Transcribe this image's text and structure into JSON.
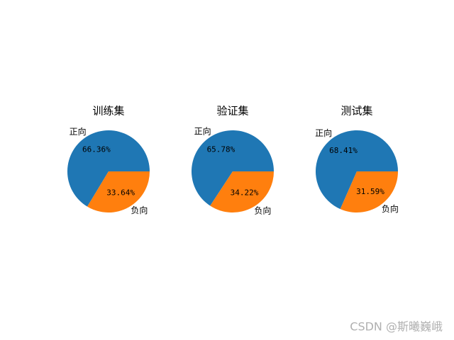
{
  "chart_data": [
    {
      "type": "pie",
      "title": "训练集",
      "categories": [
        "正向",
        "负向"
      ],
      "values": [
        66.36,
        33.64
      ],
      "value_labels": [
        "66.36%",
        "33.64%"
      ],
      "colors": [
        "#1f77b4",
        "#ff7f0e"
      ]
    },
    {
      "type": "pie",
      "title": "验证集",
      "categories": [
        "正向",
        "负向"
      ],
      "values": [
        65.78,
        34.22
      ],
      "value_labels": [
        "65.78%",
        "34.22%"
      ],
      "colors": [
        "#1f77b4",
        "#ff7f0e"
      ]
    },
    {
      "type": "pie",
      "title": "测试集",
      "categories": [
        "正向",
        "负向"
      ],
      "values": [
        68.41,
        31.59
      ],
      "value_labels": [
        "68.41%",
        "31.59%"
      ],
      "colors": [
        "#1f77b4",
        "#ff7f0e"
      ]
    }
  ],
  "watermark": "CSDN @斯曦巍峨"
}
